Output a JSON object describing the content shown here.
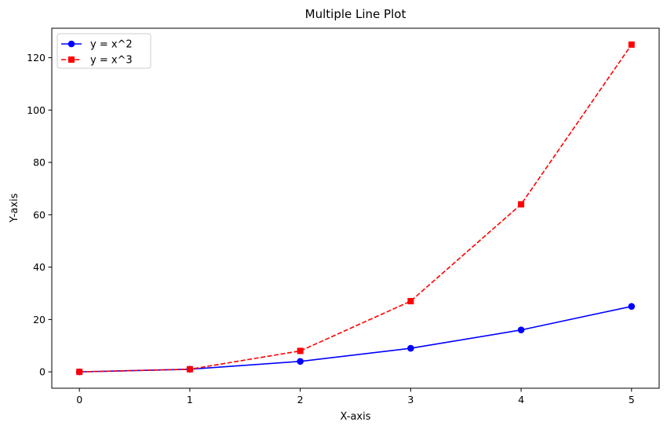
{
  "chart_data": {
    "type": "line",
    "title": "Multiple Line Plot",
    "xlabel": "X-axis",
    "ylabel": "Y-axis",
    "x": [
      0,
      1,
      2,
      3,
      4,
      5
    ],
    "xlim": [
      -0.25,
      5.25
    ],
    "ylim": [
      -6.25,
      131.25
    ],
    "xticks": [
      0,
      1,
      2,
      3,
      4,
      5
    ],
    "yticks": [
      0,
      20,
      40,
      60,
      80,
      100,
      120
    ],
    "grid": false,
    "legend_position": "top-left",
    "series": [
      {
        "name": "y = x^2",
        "values": [
          0,
          1,
          4,
          9,
          16,
          25
        ],
        "color": "#0000ff",
        "line_style": "solid",
        "marker": "circle"
      },
      {
        "name": "y = x^3",
        "values": [
          0,
          1,
          8,
          27,
          64,
          125
        ],
        "color": "#ff0000",
        "line_style": "dashed",
        "marker": "square"
      }
    ]
  }
}
